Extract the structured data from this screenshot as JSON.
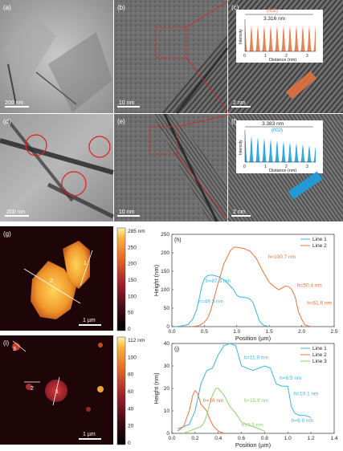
{
  "panels": {
    "a": {
      "label": "(a)",
      "scale": "200 nm"
    },
    "b": {
      "label": "(b)",
      "scale": "10 nm"
    },
    "c": {
      "label": "(c)",
      "scale": "2 nm",
      "inset_measure": "3.316 nm",
      "inset_plane": "(002)",
      "inset_xlabel": "Distance (nm)",
      "inset_ylabel": "Intensity",
      "inset_ticks": [
        "0",
        "1",
        "2",
        "3"
      ]
    },
    "d": {
      "label": "(d)",
      "scale": "200 nm"
    },
    "e": {
      "label": "(e)",
      "scale": "10 nm"
    },
    "f": {
      "label": "(f)",
      "scale": "2 nm",
      "inset_measure": "3.383 nm",
      "inset_plane": "(002)",
      "inset_xlabel": "Distance (nm)",
      "inset_ylabel": "Intensity",
      "inset_ticks": [
        "0",
        "1",
        "2",
        "3"
      ]
    },
    "g": {
      "label": "(g)",
      "scale": "1 µm",
      "colorbar_ticks": [
        "285 nm",
        "250",
        "200",
        "150",
        "100",
        "50",
        "0"
      ],
      "line_labels": [
        "1",
        "2"
      ]
    },
    "i": {
      "label": "(i)",
      "scale": "1 µm",
      "colorbar_ticks": [
        "112 nm",
        "100",
        "80",
        "60",
        "40",
        "20",
        "0"
      ],
      "line_labels": [
        "1",
        "2",
        "3"
      ]
    }
  },
  "colors": {
    "line1": "#3db4e2",
    "line2": "#e8733e",
    "line3": "#8fd16a",
    "inset_c": "#e8733e",
    "inset_f": "#1d9fe0"
  },
  "chart_data": [
    {
      "panel": "(h)",
      "type": "line",
      "xlabel": "Position (µm)",
      "ylabel": "Height (nm)",
      "xlim": [
        0,
        2.5
      ],
      "ylim": [
        0,
        250
      ],
      "xticks": [
        "0.0",
        "0.5",
        "1.0",
        "1.5",
        "2.0",
        "2.5"
      ],
      "yticks": [
        "0",
        "50",
        "100",
        "150",
        "200",
        "250"
      ],
      "legend": [
        "Line 1",
        "Line 2"
      ],
      "legend_position": "top-right",
      "series": [
        {
          "name": "Line 1",
          "x": [
            0.05,
            0.15,
            0.25,
            0.32,
            0.38,
            0.42,
            0.46,
            0.5,
            0.55,
            0.62,
            0.72,
            0.82,
            0.9,
            0.95,
            1.0,
            1.05,
            1.1,
            1.15,
            1.2,
            1.25,
            1.3,
            1.35,
            1.4,
            1.45,
            1.5
          ],
          "y": [
            0,
            2,
            6,
            20,
            45,
            75,
            110,
            130,
            138,
            140,
            135,
            125,
            110,
            100,
            85,
            80,
            80,
            78,
            75,
            65,
            40,
            15,
            5,
            2,
            0
          ]
        },
        {
          "name": "Line 2",
          "x": [
            0.3,
            0.4,
            0.45,
            0.5,
            0.55,
            0.6,
            0.7,
            0.8,
            0.9,
            0.95,
            1.0,
            1.1,
            1.2,
            1.3,
            1.4,
            1.5,
            1.6,
            1.65,
            1.7,
            1.75,
            1.8,
            1.85,
            1.9,
            1.95,
            2.0,
            2.05,
            2.1,
            2.15
          ],
          "y": [
            0,
            2,
            6,
            12,
            22,
            45,
            110,
            170,
            205,
            215,
            215,
            212,
            205,
            185,
            150,
            120,
            105,
            100,
            105,
            110,
            108,
            100,
            80,
            40,
            20,
            5,
            2,
            0
          ]
        }
      ],
      "annotations": [
        {
          "text": "h=87.3 nm",
          "series": "Line 1"
        },
        {
          "text": "h=49.3 nm",
          "series": "Line 1"
        },
        {
          "text": "h=100.7 nm",
          "series": "Line 2"
        },
        {
          "text": "h=50.4 nm",
          "series": "Line 2"
        },
        {
          "text": "h=61.6 nm",
          "series": "Line 2"
        }
      ]
    },
    {
      "panel": "(j)",
      "type": "line",
      "xlabel": "Position (µm)",
      "ylabel": "Height (nm)",
      "xlim": [
        0,
        1.4
      ],
      "ylim": [
        0,
        40
      ],
      "xticks": [
        "0.0",
        "0.2",
        "0.4",
        "0.6",
        "0.8",
        "1.0",
        "1.2",
        "1.4"
      ],
      "yticks": [
        "0",
        "10",
        "20",
        "30",
        "40"
      ],
      "legend": [
        "Line 1",
        "Line 2",
        "Line 3"
      ],
      "legend_position": "top-right",
      "series": [
        {
          "name": "Line 1",
          "x": [
            0.05,
            0.15,
            0.2,
            0.25,
            0.3,
            0.35,
            0.4,
            0.45,
            0.5,
            0.55,
            0.6,
            0.65,
            0.7,
            0.75,
            0.8,
            0.85,
            0.9,
            0.95,
            1.0,
            1.03,
            1.06,
            1.1,
            1.15,
            1.2
          ],
          "y": [
            2,
            4,
            10,
            22,
            28,
            29,
            35,
            39,
            40,
            39,
            30,
            29,
            28,
            29,
            30,
            29,
            22,
            21,
            21,
            12,
            9,
            8,
            8,
            7
          ]
        },
        {
          "name": "Line 2",
          "x": [
            0.05,
            0.1,
            0.15,
            0.18,
            0.2,
            0.22,
            0.25,
            0.3,
            0.33,
            0.36,
            0.4,
            0.45
          ],
          "y": [
            1,
            3,
            10,
            17,
            19,
            18,
            13,
            10,
            6,
            3,
            1,
            0
          ]
        },
        {
          "name": "Line 3",
          "x": [
            0.1,
            0.15,
            0.2,
            0.25,
            0.28,
            0.3,
            0.32,
            0.35,
            0.38,
            0.4,
            0.45,
            0.5,
            0.55,
            0.6,
            0.65,
            0.7,
            0.75,
            0.8
          ],
          "y": [
            0,
            1,
            2,
            3,
            5,
            8,
            12,
            17,
            20,
            20,
            17,
            12,
            9,
            5,
            4,
            3,
            2,
            1
          ]
        }
      ],
      "annotations": [
        {
          "text": "h=11.9 nm",
          "series": "Line 1"
        },
        {
          "text": "h=6.5 nm",
          "series": "Line 1"
        },
        {
          "text": "h=10.1 nm",
          "series": "Line 1"
        },
        {
          "text": "h=9.9 nm",
          "series": "Line 1"
        },
        {
          "text": "h=16 nm",
          "series": "Line 2"
        },
        {
          "text": "h=15.9 nm",
          "series": "Line 3"
        },
        {
          "text": "h=3.5 nm",
          "series": "Line 3"
        }
      ]
    }
  ]
}
